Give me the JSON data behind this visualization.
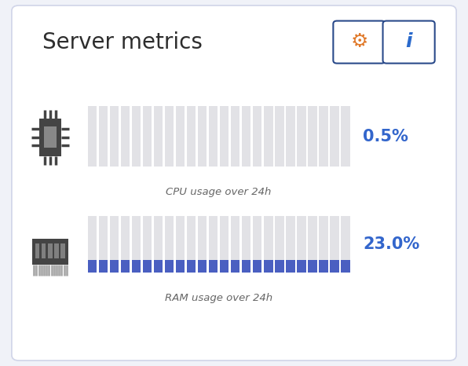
{
  "title": "Server metrics",
  "background_color": "#f0f2f8",
  "card_color": "#ffffff",
  "card_edge_color": "#d0d4e8",
  "n_bars": 24,
  "cpu_value": 0.005,
  "ram_value": 0.23,
  "cpu_label": "CPU usage over 24h",
  "ram_label": "RAM usage over 24h",
  "cpu_text": "0.5%",
  "ram_text": "23.0%",
  "bar_bg_color": "#e2e2e6",
  "cpu_bar_color": "#7090e0",
  "ram_bar_color": "#4a5fc1",
  "value_color": "#3366cc",
  "title_color": "#2d2d2d",
  "label_color": "#666666",
  "icon_color": "#444444",
  "btn_edge_color": "#2a4a8a",
  "gear_color": "#e07828",
  "info_color": "#2a6acc"
}
